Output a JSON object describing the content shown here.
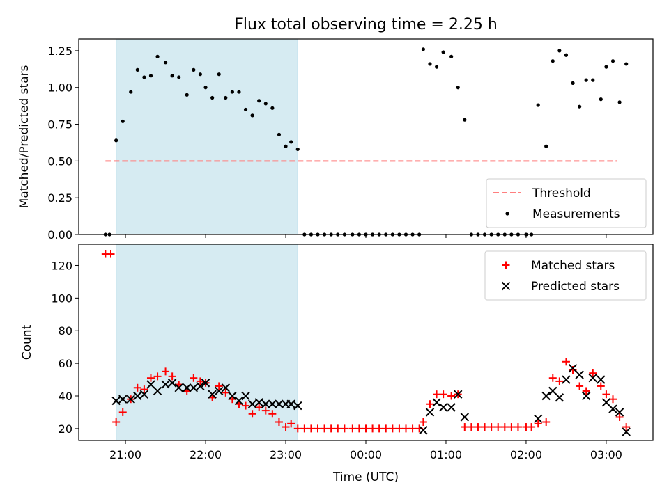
{
  "figure": {
    "title": "Flux total observing time = 2.25 h",
    "xlabel": "Time (UTC)"
  },
  "colors": {
    "shade": "#add8e6",
    "threshold": "#ff7f7f",
    "measurements": "#000000",
    "matched": "#ff0000",
    "predicted": "#000000"
  },
  "chart_data": [
    {
      "type": "scatter",
      "title": "Flux total observing time = 2.25 h",
      "xlabel": "",
      "ylabel": "Matched/Predicted stars",
      "xlim": [
        "20:25",
        "03:35"
      ],
      "ylim": [
        0,
        1.33
      ],
      "yticks": [
        "0.00",
        "0.25",
        "0.50",
        "0.75",
        "1.00",
        "1.25"
      ],
      "yticks_values": [
        0,
        0.25,
        0.5,
        0.75,
        1.0,
        1.25
      ],
      "grid": false,
      "legend_position": "lower right",
      "shaded_region": {
        "x": [
          "20:53",
          "23:09"
        ]
      },
      "threshold": {
        "name": "Threshold",
        "value": 0.5,
        "x": [
          "20:45",
          "03:08"
        ]
      },
      "series": [
        {
          "name": "Measurements",
          "marker": "dot",
          "points": [
            [
              "20:45",
              0
            ],
            [
              "20:48",
              0
            ],
            [
              "20:53",
              0.64
            ],
            [
              "20:58",
              0.77
            ],
            [
              "21:04",
              0.97
            ],
            [
              "21:09",
              1.12
            ],
            [
              "21:14",
              1.07
            ],
            [
              "21:19",
              1.08
            ],
            [
              "21:24",
              1.21
            ],
            [
              "21:30",
              1.17
            ],
            [
              "21:35",
              1.08
            ],
            [
              "21:40",
              1.07
            ],
            [
              "21:46",
              0.95
            ],
            [
              "21:51",
              1.12
            ],
            [
              "21:56",
              1.09
            ],
            [
              "22:00",
              1.0
            ],
            [
              "22:05",
              0.93
            ],
            [
              "22:10",
              1.09
            ],
            [
              "22:15",
              0.93
            ],
            [
              "22:20",
              0.97
            ],
            [
              "22:25",
              0.97
            ],
            [
              "22:30",
              0.85
            ],
            [
              "22:35",
              0.81
            ],
            [
              "22:40",
              0.91
            ],
            [
              "22:45",
              0.89
            ],
            [
              "22:50",
              0.86
            ],
            [
              "22:55",
              0.68
            ],
            [
              "23:00",
              0.6
            ],
            [
              "23:04",
              0.63
            ],
            [
              "23:09",
              0.58
            ],
            [
              "23:14",
              0
            ],
            [
              "23:19",
              0
            ],
            [
              "23:24",
              0
            ],
            [
              "23:29",
              0
            ],
            [
              "23:34",
              0
            ],
            [
              "23:39",
              0
            ],
            [
              "23:44",
              0
            ],
            [
              "23:50",
              0
            ],
            [
              "23:55",
              0
            ],
            [
              "00:00",
              0
            ],
            [
              "00:05",
              0
            ],
            [
              "00:10",
              0
            ],
            [
              "00:15",
              0
            ],
            [
              "00:20",
              0
            ],
            [
              "00:25",
              0
            ],
            [
              "00:30",
              0
            ],
            [
              "00:35",
              0
            ],
            [
              "00:40",
              0
            ],
            [
              "00:43",
              1.26
            ],
            [
              "00:48",
              1.16
            ],
            [
              "00:53",
              1.14
            ],
            [
              "00:58",
              1.24
            ],
            [
              "01:04",
              1.21
            ],
            [
              "01:09",
              1.0
            ],
            [
              "01:14",
              0.78
            ],
            [
              "01:19",
              0
            ],
            [
              "01:24",
              0
            ],
            [
              "01:29",
              0
            ],
            [
              "01:34",
              0
            ],
            [
              "01:39",
              0
            ],
            [
              "01:44",
              0
            ],
            [
              "01:49",
              0
            ],
            [
              "01:54",
              0
            ],
            [
              "02:00",
              0
            ],
            [
              "02:04",
              0
            ],
            [
              "02:09",
              0.88
            ],
            [
              "02:15",
              0.6
            ],
            [
              "02:20",
              1.18
            ],
            [
              "02:25",
              1.25
            ],
            [
              "02:30",
              1.22
            ],
            [
              "02:35",
              1.03
            ],
            [
              "02:40",
              0.87
            ],
            [
              "02:45",
              1.05
            ],
            [
              "02:50",
              1.05
            ],
            [
              "02:56",
              0.92
            ],
            [
              "03:00",
              1.14
            ],
            [
              "03:05",
              1.18
            ],
            [
              "03:10",
              0.9
            ],
            [
              "03:15",
              1.16
            ]
          ]
        }
      ]
    },
    {
      "type": "scatter",
      "title": "",
      "xlabel": "Time (UTC)",
      "ylabel": "Count",
      "xlim": [
        "20:25",
        "03:35"
      ],
      "ylim": [
        12.7,
        133
      ],
      "xticks": [
        "21:00",
        "22:00",
        "23:00",
        "00:00",
        "01:00",
        "02:00",
        "03:00"
      ],
      "yticks": [
        "20",
        "40",
        "60",
        "80",
        "100",
        "120"
      ],
      "yticks_values": [
        20,
        40,
        60,
        80,
        100,
        120
      ],
      "grid": false,
      "legend_position": "upper right",
      "shaded_region": {
        "x": [
          "20:53",
          "23:09"
        ]
      },
      "series": [
        {
          "name": "Matched stars",
          "marker": "plus",
          "points": [
            [
              "20:45",
              127
            ],
            [
              "20:49",
              127
            ],
            [
              "20:53",
              24
            ],
            [
              "20:58",
              30
            ],
            [
              "21:04",
              38
            ],
            [
              "21:09",
              45
            ],
            [
              "21:14",
              44
            ],
            [
              "21:19",
              51
            ],
            [
              "21:24",
              52
            ],
            [
              "21:30",
              55
            ],
            [
              "21:35",
              52
            ],
            [
              "21:40",
              47
            ],
            [
              "21:46",
              43
            ],
            [
              "21:51",
              51
            ],
            [
              "21:56",
              49
            ],
            [
              "22:00",
              48
            ],
            [
              "22:05",
              39
            ],
            [
              "22:10",
              46
            ],
            [
              "22:15",
              42
            ],
            [
              "22:20",
              38
            ],
            [
              "22:25",
              35
            ],
            [
              "22:30",
              34
            ],
            [
              "22:35",
              29
            ],
            [
              "22:40",
              33
            ],
            [
              "22:45",
              31
            ],
            [
              "22:50",
              29
            ],
            [
              "22:55",
              24
            ],
            [
              "23:00",
              21
            ],
            [
              "23:04",
              23
            ],
            [
              "23:09",
              20
            ],
            [
              "23:14",
              20
            ],
            [
              "23:19",
              20
            ],
            [
              "23:24",
              20
            ],
            [
              "23:29",
              20
            ],
            [
              "23:34",
              20
            ],
            [
              "23:39",
              20
            ],
            [
              "23:44",
              20
            ],
            [
              "23:50",
              20
            ],
            [
              "23:55",
              20
            ],
            [
              "00:00",
              20
            ],
            [
              "00:05",
              20
            ],
            [
              "00:10",
              20
            ],
            [
              "00:15",
              20
            ],
            [
              "00:20",
              20
            ],
            [
              "00:25",
              20
            ],
            [
              "00:30",
              20
            ],
            [
              "00:35",
              20
            ],
            [
              "00:40",
              20
            ],
            [
              "00:43",
              24
            ],
            [
              "00:48",
              35
            ],
            [
              "00:53",
              41
            ],
            [
              "00:58",
              41
            ],
            [
              "01:04",
              40
            ],
            [
              "01:09",
              41
            ],
            [
              "01:14",
              21
            ],
            [
              "01:19",
              21
            ],
            [
              "01:24",
              21
            ],
            [
              "01:29",
              21
            ],
            [
              "01:34",
              21
            ],
            [
              "01:39",
              21
            ],
            [
              "01:44",
              21
            ],
            [
              "01:49",
              21
            ],
            [
              "01:54",
              21
            ],
            [
              "02:00",
              21
            ],
            [
              "02:04",
              21
            ],
            [
              "02:09",
              23
            ],
            [
              "02:15",
              24
            ],
            [
              "02:20",
              51
            ],
            [
              "02:25",
              49
            ],
            [
              "02:30",
              61
            ],
            [
              "02:35",
              56
            ],
            [
              "02:40",
              46
            ],
            [
              "02:45",
              43
            ],
            [
              "02:50",
              54
            ],
            [
              "02:56",
              46
            ],
            [
              "03:00",
              41
            ],
            [
              "03:05",
              38
            ],
            [
              "03:10",
              27
            ],
            [
              "03:15",
              21
            ]
          ]
        },
        {
          "name": "Predicted stars",
          "marker": "x",
          "points": [
            [
              "20:53",
              37
            ],
            [
              "20:58",
              38
            ],
            [
              "21:04",
              38
            ],
            [
              "21:09",
              40
            ],
            [
              "21:14",
              41
            ],
            [
              "21:19",
              47
            ],
            [
              "21:24",
              43
            ],
            [
              "21:30",
              47
            ],
            [
              "21:35",
              48
            ],
            [
              "21:40",
              45
            ],
            [
              "21:46",
              45
            ],
            [
              "21:51",
              45
            ],
            [
              "21:56",
              46
            ],
            [
              "22:00",
              48
            ],
            [
              "22:05",
              41
            ],
            [
              "22:10",
              43
            ],
            [
              "22:15",
              45
            ],
            [
              "22:20",
              40
            ],
            [
              "22:25",
              37
            ],
            [
              "22:30",
              40
            ],
            [
              "22:35",
              35
            ],
            [
              "22:40",
              36
            ],
            [
              "22:45",
              35
            ],
            [
              "22:50",
              35
            ],
            [
              "22:55",
              35
            ],
            [
              "23:00",
              35
            ],
            [
              "23:04",
              35
            ],
            [
              "23:09",
              34
            ],
            [
              "00:43",
              19
            ],
            [
              "00:48",
              30
            ],
            [
              "00:53",
              36
            ],
            [
              "00:58",
              33
            ],
            [
              "01:04",
              33
            ],
            [
              "01:09",
              41
            ],
            [
              "01:14",
              27
            ],
            [
              "02:09",
              26
            ],
            [
              "02:15",
              40
            ],
            [
              "02:20",
              43
            ],
            [
              "02:25",
              39
            ],
            [
              "02:30",
              50
            ],
            [
              "02:35",
              57
            ],
            [
              "02:40",
              53
            ],
            [
              "02:45",
              40
            ],
            [
              "02:50",
              51
            ],
            [
              "02:56",
              50
            ],
            [
              "03:00",
              36
            ],
            [
              "03:05",
              32
            ],
            [
              "03:10",
              30
            ],
            [
              "03:15",
              18
            ]
          ]
        }
      ]
    }
  ]
}
